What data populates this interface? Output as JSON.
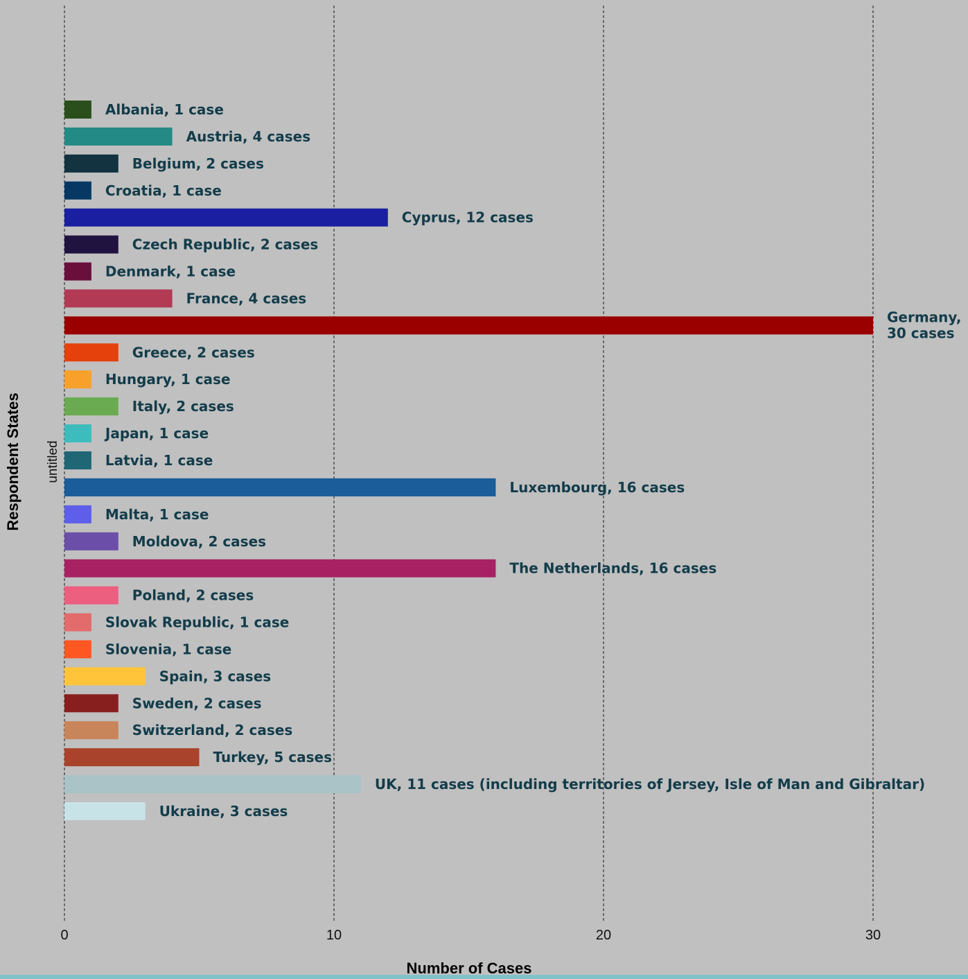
{
  "chart_data": {
    "type": "bar",
    "orientation": "horizontal",
    "xlabel": "Number of Cases",
    "ylabel": "Respondent States",
    "y_sublabel": "untitled",
    "xlim": [
      0,
      33
    ],
    "x_ticks": [
      0,
      10,
      20,
      30
    ],
    "grid": "vertical dashed",
    "label_color": "#133c4a",
    "bars": [
      {
        "label": "Albania, 1 case",
        "value": 1,
        "color": "#2a4f1d"
      },
      {
        "label": "Austria, 4 cases",
        "value": 4,
        "color": "#248a86"
      },
      {
        "label": "Belgium, 2 cases",
        "value": 2,
        "color": "#12333f"
      },
      {
        "label": "Croatia, 1 case",
        "value": 1,
        "color": "#063863"
      },
      {
        "label": "Cyprus, 12 cases",
        "value": 12,
        "color": "#1a1ea0"
      },
      {
        "label": "Czech Republic, 2 cases",
        "value": 2,
        "color": "#20133f"
      },
      {
        "label": "Denmark, 1 case",
        "value": 1,
        "color": "#6a0f3c"
      },
      {
        "label": "France, 4 cases",
        "value": 4,
        "color": "#b23a55"
      },
      {
        "label": "Germany, 30 cases",
        "label_lines": [
          "Germany,",
          "30 cases"
        ],
        "value": 30,
        "color": "#9b0000"
      },
      {
        "label": "Greece, 2 cases",
        "value": 2,
        "color": "#e4410d"
      },
      {
        "label": "Hungary, 1 case",
        "value": 1,
        "color": "#f7a02a"
      },
      {
        "label": "Italy, 2 cases",
        "value": 2,
        "color": "#6aab52"
      },
      {
        "label": "Japan, 1 case",
        "value": 1,
        "color": "#3cbcbc"
      },
      {
        "label": "Latvia, 1 case",
        "value": 1,
        "color": "#1f6775"
      },
      {
        "label": "Luxembourg, 16 cases",
        "value": 16,
        "color": "#1b5c9a"
      },
      {
        "label": "Malta, 1 case",
        "value": 1,
        "color": "#5e5eea"
      },
      {
        "label": "Moldova, 2 cases",
        "value": 2,
        "color": "#6b4ea8"
      },
      {
        "label": "The Netherlands, 16 cases",
        "value": 16,
        "color": "#a82263"
      },
      {
        "label": "Poland, 2 cases",
        "value": 2,
        "color": "#ec5f7f"
      },
      {
        "label": "Slovak Republic, 1 case",
        "value": 1,
        "color": "#e36b6b"
      },
      {
        "label": "Slovenia, 1 case",
        "value": 1,
        "color": "#ff5722"
      },
      {
        "label": "Spain, 3 cases",
        "value": 3,
        "color": "#ffc43a"
      },
      {
        "label": "Sweden, 2 cases",
        "value": 2,
        "color": "#871f1f"
      },
      {
        "label": "Switzerland, 2 cases",
        "value": 2,
        "color": "#c9855a"
      },
      {
        "label": "Turkey, 5 cases",
        "value": 5,
        "color": "#a9432b"
      },
      {
        "label": "UK, 11 cases (including territories of Jersey, Isle of Man and Gibraltar)",
        "value": 11,
        "color": "#a9c3c7"
      },
      {
        "label": "Ukraine, 3 cases",
        "value": 3,
        "color": "#c8e3e8"
      }
    ]
  }
}
